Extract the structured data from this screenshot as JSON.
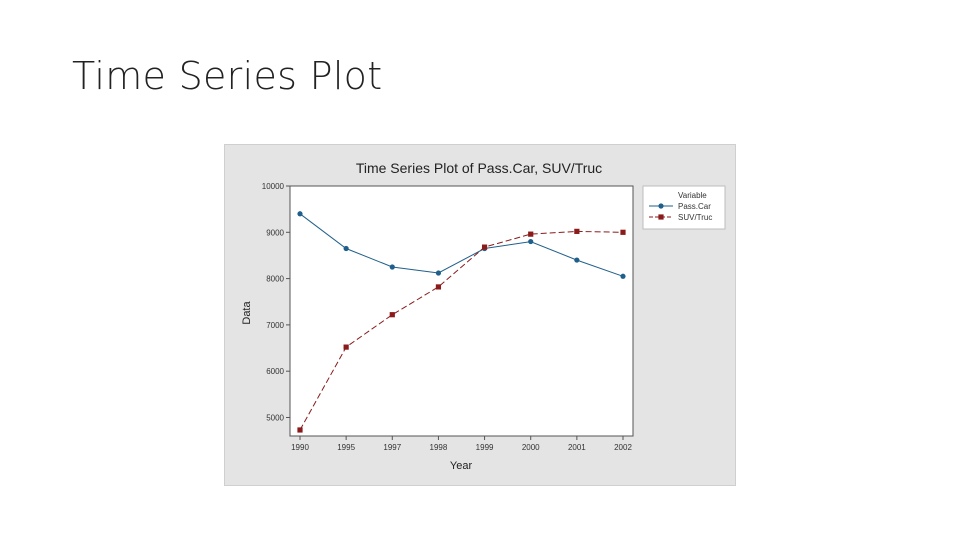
{
  "slide": {
    "title": "Time Series Plot"
  },
  "chart_data": {
    "type": "line",
    "title": "Time Series Plot of Pass.Car, SUV/Truc",
    "xlabel": "Year",
    "ylabel": "Data",
    "categories": [
      "1990",
      "1995",
      "1997",
      "1998",
      "1999",
      "2000",
      "2001",
      "2002"
    ],
    "ylim": [
      4600,
      10000
    ],
    "yticks": [
      5000,
      6000,
      7000,
      8000,
      9000,
      10000
    ],
    "legend": {
      "title": "Variable",
      "position": "right"
    },
    "series": [
      {
        "name": "Pass.Car",
        "values": [
          9400,
          8650,
          8250,
          8120,
          8650,
          8800,
          8400,
          8050
        ],
        "color": "#1f5f8b",
        "marker": "circle",
        "line": "solid"
      },
      {
        "name": "SUV/Truc",
        "values": [
          4730,
          6520,
          7220,
          7820,
          8680,
          8960,
          9020,
          9000
        ],
        "color": "#8b1a1a",
        "marker": "square",
        "line": "dashed"
      }
    ]
  }
}
